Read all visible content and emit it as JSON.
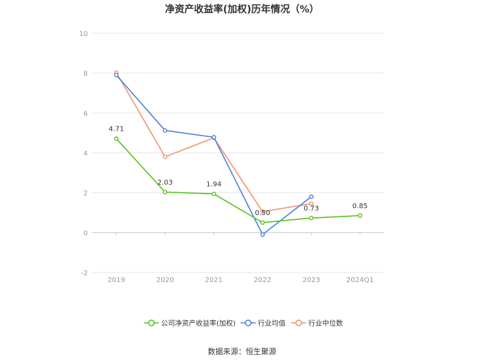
{
  "chart_data": {
    "type": "line",
    "title": "净资产收益率(加权)历年情况（%）",
    "categories": [
      "2019",
      "2020",
      "2021",
      "2022",
      "2023",
      "2024Q1"
    ],
    "ylim": [
      -2,
      10
    ],
    "yticks": [
      "10",
      "8",
      "6",
      "4",
      "2",
      "0",
      "-2"
    ],
    "grid": true,
    "legend_position": "bottom",
    "series": [
      {
        "name": "公司净资产收益率(加权)",
        "color": "#52c41a",
        "values": [
          4.71,
          2.03,
          1.94,
          0.5,
          0.73,
          0.85
        ],
        "labels": [
          "4.71",
          "2.03",
          "1.94",
          "0.50",
          "0.73",
          "0.85"
        ]
      },
      {
        "name": "行业均值",
        "color": "#4a7fe0",
        "values": [
          7.9,
          5.12,
          4.78,
          -0.1,
          1.8,
          null
        ]
      },
      {
        "name": "行业中位数",
        "color": "#f2936b",
        "values": [
          8.02,
          3.8,
          4.75,
          1.05,
          1.45,
          null
        ]
      }
    ]
  },
  "source": "数据来源：恒生聚源"
}
